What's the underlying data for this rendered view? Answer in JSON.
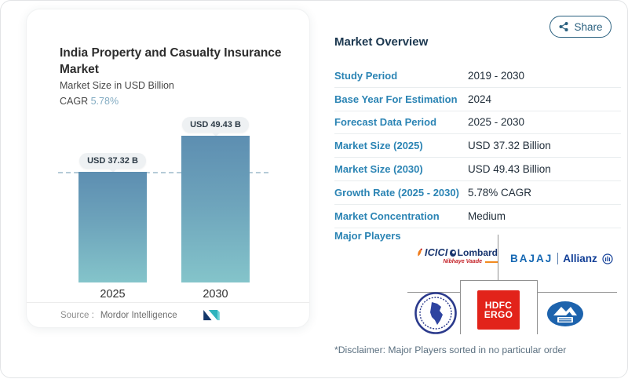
{
  "share": {
    "label": "Share"
  },
  "chart_card": {
    "cagr_label": "CAGR",
    "source_label": "Source :",
    "source_value": "Mordor Intelligence"
  },
  "chart_data": {
    "type": "bar",
    "title": "India Property and Casualty Insurance Market",
    "subtitle": "Market Size in USD Billion",
    "cagr": "5.78%",
    "categories": [
      "2025",
      "2030"
    ],
    "values": [
      37.32,
      49.43
    ],
    "unit": "USD Billion",
    "bar_labels": [
      "USD 37.32 B",
      "USD 49.43 B"
    ],
    "reference_line_value": 37.32,
    "ylim": [
      0,
      55
    ],
    "legend": "none",
    "grid": "off"
  },
  "overview": {
    "heading": "Market Overview",
    "rows": [
      {
        "label": "Study Period",
        "value": "2019 - 2030"
      },
      {
        "label": "Base Year For Estimation",
        "value": "2024"
      },
      {
        "label": "Forecast Data Period",
        "value": "2025 - 2030"
      },
      {
        "label": "Market Size (2025)",
        "value": "USD 37.32 Billion"
      },
      {
        "label": "Market Size (2030)",
        "value": "USD 49.43 Billion"
      },
      {
        "label": "Growth Rate (2025 - 2030)",
        "value": "5.78% CAGR"
      },
      {
        "label": "Market Concentration",
        "value": "Medium"
      }
    ],
    "major_players_label": "Major Players",
    "disclaimer": "*Disclaimer: Major Players sorted in no particular order"
  },
  "logos": {
    "icici": {
      "brand": "ICICI",
      "suffix": "Lombard",
      "tagline": "Nibhaye Vaade"
    },
    "bajaj": {
      "brand": "BAJAJ",
      "suffix": "Allianz"
    },
    "hdfc": {
      "line1": "HDFC",
      "line2": "ERGO"
    }
  },
  "colors": {
    "accent_blue": "#2b84b4",
    "heading_navy": "#1c3850",
    "bar_top": "#5d8eb1",
    "bar_bottom": "#84c4ca",
    "cagr_value": "#82abc2",
    "hdfc_red": "#e2231a",
    "share_outline": "#2a607f",
    "dashed_line": "#b5cbd7"
  }
}
